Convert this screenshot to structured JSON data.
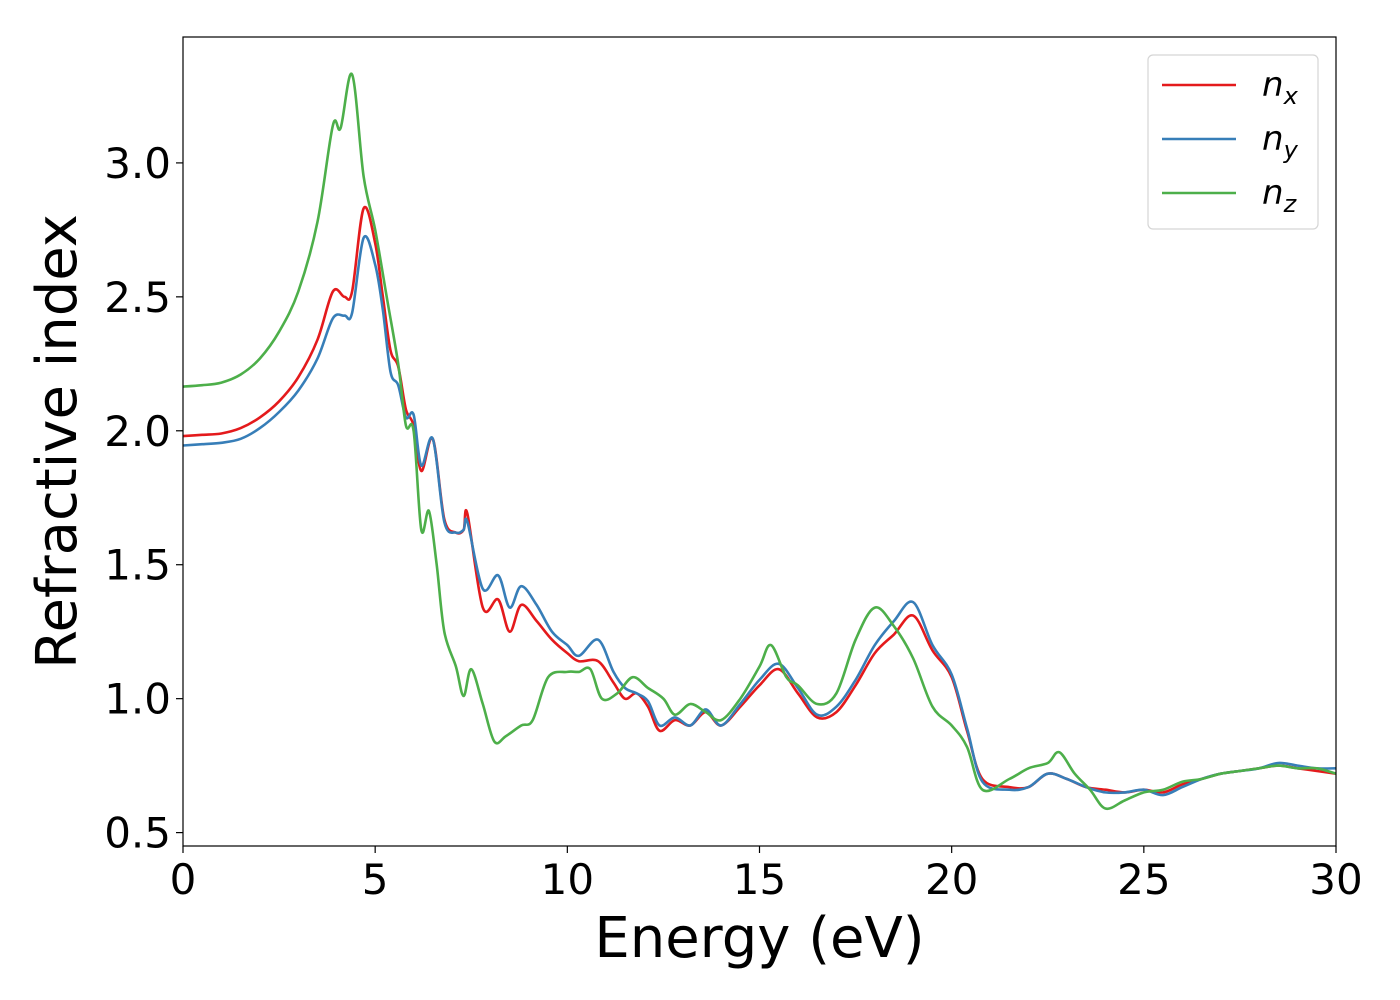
{
  "chart_data": {
    "type": "line",
    "xlabel": "Energy (eV)",
    "ylabel": "Refractive index",
    "xlim": [
      0,
      30
    ],
    "ylim": [
      0.45,
      3.47
    ],
    "xticks": [
      "0",
      "5",
      "10",
      "15",
      "20",
      "25",
      "30"
    ],
    "yticks": [
      "0.5",
      "1.0",
      "1.5",
      "2.0",
      "2.5",
      "3.0"
    ],
    "grid": false,
    "legend_position": "top-right",
    "series": [
      {
        "name": "n",
        "subscript": "x",
        "color": "#e41a1c",
        "points": [
          [
            0,
            1.98
          ],
          [
            0.5,
            1.985
          ],
          [
            1,
            1.99
          ],
          [
            1.5,
            2.01
          ],
          [
            2,
            2.05
          ],
          [
            2.5,
            2.11
          ],
          [
            3,
            2.2
          ],
          [
            3.5,
            2.34
          ],
          [
            3.9,
            2.52
          ],
          [
            4.2,
            2.5
          ],
          [
            4.4,
            2.52
          ],
          [
            4.7,
            2.83
          ],
          [
            5,
            2.7
          ],
          [
            5.2,
            2.5
          ],
          [
            5.4,
            2.3
          ],
          [
            5.6,
            2.24
          ],
          [
            5.8,
            2.08
          ],
          [
            6,
            2.02
          ],
          [
            6.2,
            1.85
          ],
          [
            6.5,
            1.97
          ],
          [
            6.8,
            1.67
          ],
          [
            7.1,
            1.62
          ],
          [
            7.3,
            1.63
          ],
          [
            7.4,
            1.69
          ],
          [
            7.8,
            1.34
          ],
          [
            8.2,
            1.37
          ],
          [
            8.5,
            1.25
          ],
          [
            8.8,
            1.35
          ],
          [
            9.2,
            1.29
          ],
          [
            9.6,
            1.22
          ],
          [
            10,
            1.17
          ],
          [
            10.3,
            1.14
          ],
          [
            10.8,
            1.14
          ],
          [
            11.2,
            1.06
          ],
          [
            11.5,
            1.0
          ],
          [
            11.8,
            1.02
          ],
          [
            12.1,
            0.97
          ],
          [
            12.4,
            0.88
          ],
          [
            12.8,
            0.92
          ],
          [
            13.2,
            0.9
          ],
          [
            13.6,
            0.95
          ],
          [
            14,
            0.9
          ],
          [
            14.5,
            0.97
          ],
          [
            15,
            1.05
          ],
          [
            15.5,
            1.11
          ],
          [
            16,
            1.02
          ],
          [
            16.5,
            0.93
          ],
          [
            17,
            0.95
          ],
          [
            17.5,
            1.05
          ],
          [
            18,
            1.17
          ],
          [
            18.5,
            1.24
          ],
          [
            19,
            1.31
          ],
          [
            19.5,
            1.18
          ],
          [
            20,
            1.08
          ],
          [
            20.4,
            0.88
          ],
          [
            20.8,
            0.7
          ],
          [
            21.5,
            0.67
          ],
          [
            22,
            0.67
          ],
          [
            22.5,
            0.72
          ],
          [
            23,
            0.7
          ],
          [
            23.5,
            0.67
          ],
          [
            24,
            0.66
          ],
          [
            24.5,
            0.65
          ],
          [
            25,
            0.66
          ],
          [
            25.5,
            0.65
          ],
          [
            26,
            0.68
          ],
          [
            26.5,
            0.7
          ],
          [
            27,
            0.72
          ],
          [
            27.5,
            0.73
          ],
          [
            28,
            0.74
          ],
          [
            28.5,
            0.75
          ],
          [
            29,
            0.74
          ],
          [
            29.5,
            0.73
          ],
          [
            30,
            0.72
          ]
        ]
      },
      {
        "name": "n",
        "subscript": "y",
        "color": "#377eb8",
        "points": [
          [
            0,
            1.945
          ],
          [
            0.5,
            1.95
          ],
          [
            1,
            1.955
          ],
          [
            1.5,
            1.97
          ],
          [
            2,
            2.01
          ],
          [
            2.5,
            2.07
          ],
          [
            3,
            2.15
          ],
          [
            3.5,
            2.27
          ],
          [
            3.9,
            2.42
          ],
          [
            4.2,
            2.43
          ],
          [
            4.4,
            2.44
          ],
          [
            4.7,
            2.72
          ],
          [
            5,
            2.62
          ],
          [
            5.2,
            2.45
          ],
          [
            5.4,
            2.22
          ],
          [
            5.6,
            2.17
          ],
          [
            5.8,
            2.05
          ],
          [
            6,
            2.06
          ],
          [
            6.2,
            1.87
          ],
          [
            6.5,
            1.97
          ],
          [
            6.8,
            1.66
          ],
          [
            7.1,
            1.62
          ],
          [
            7.3,
            1.63
          ],
          [
            7.4,
            1.66
          ],
          [
            7.8,
            1.41
          ],
          [
            8.2,
            1.46
          ],
          [
            8.5,
            1.34
          ],
          [
            8.8,
            1.42
          ],
          [
            9.2,
            1.35
          ],
          [
            9.6,
            1.25
          ],
          [
            10,
            1.2
          ],
          [
            10.3,
            1.16
          ],
          [
            10.8,
            1.22
          ],
          [
            11.2,
            1.1
          ],
          [
            11.5,
            1.04
          ],
          [
            11.8,
            1.02
          ],
          [
            12.1,
            0.99
          ],
          [
            12.4,
            0.9
          ],
          [
            12.8,
            0.93
          ],
          [
            13.2,
            0.9
          ],
          [
            13.6,
            0.96
          ],
          [
            14,
            0.9
          ],
          [
            14.5,
            0.98
          ],
          [
            15,
            1.07
          ],
          [
            15.5,
            1.13
          ],
          [
            16,
            1.04
          ],
          [
            16.5,
            0.94
          ],
          [
            17,
            0.97
          ],
          [
            17.5,
            1.07
          ],
          [
            18,
            1.2
          ],
          [
            18.5,
            1.29
          ],
          [
            19,
            1.36
          ],
          [
            19.5,
            1.2
          ],
          [
            20,
            1.09
          ],
          [
            20.4,
            0.89
          ],
          [
            20.8,
            0.69
          ],
          [
            21.5,
            0.66
          ],
          [
            22,
            0.67
          ],
          [
            22.5,
            0.72
          ],
          [
            23,
            0.7
          ],
          [
            23.5,
            0.67
          ],
          [
            24,
            0.65
          ],
          [
            24.5,
            0.65
          ],
          [
            25,
            0.66
          ],
          [
            25.5,
            0.64
          ],
          [
            26,
            0.67
          ],
          [
            26.5,
            0.7
          ],
          [
            27,
            0.72
          ],
          [
            27.5,
            0.73
          ],
          [
            28,
            0.74
          ],
          [
            28.5,
            0.76
          ],
          [
            29,
            0.75
          ],
          [
            29.5,
            0.74
          ],
          [
            30,
            0.74
          ]
        ]
      },
      {
        "name": "n",
        "subscript": "z",
        "color": "#4daf4a",
        "points": [
          [
            0,
            2.165
          ],
          [
            0.5,
            2.17
          ],
          [
            1,
            2.18
          ],
          [
            1.5,
            2.21
          ],
          [
            2,
            2.27
          ],
          [
            2.5,
            2.37
          ],
          [
            3,
            2.52
          ],
          [
            3.5,
            2.78
          ],
          [
            3.9,
            3.14
          ],
          [
            4.1,
            3.13
          ],
          [
            4.4,
            3.33
          ],
          [
            4.7,
            2.95
          ],
          [
            5,
            2.75
          ],
          [
            5.3,
            2.5
          ],
          [
            5.6,
            2.25
          ],
          [
            5.8,
            2.02
          ],
          [
            6,
            2.0
          ],
          [
            6.2,
            1.63
          ],
          [
            6.4,
            1.7
          ],
          [
            6.6,
            1.5
          ],
          [
            6.8,
            1.25
          ],
          [
            7.1,
            1.12
          ],
          [
            7.3,
            1.01
          ],
          [
            7.5,
            1.11
          ],
          [
            7.8,
            0.98
          ],
          [
            8.1,
            0.84
          ],
          [
            8.4,
            0.86
          ],
          [
            8.8,
            0.9
          ],
          [
            9.1,
            0.92
          ],
          [
            9.5,
            1.08
          ],
          [
            10,
            1.1
          ],
          [
            10.3,
            1.1
          ],
          [
            10.6,
            1.11
          ],
          [
            10.9,
            1.0
          ],
          [
            11.3,
            1.02
          ],
          [
            11.7,
            1.08
          ],
          [
            12.1,
            1.04
          ],
          [
            12.5,
            1.0
          ],
          [
            12.8,
            0.94
          ],
          [
            13.2,
            0.98
          ],
          [
            13.6,
            0.95
          ],
          [
            14,
            0.92
          ],
          [
            14.5,
            1.0
          ],
          [
            15,
            1.12
          ],
          [
            15.3,
            1.2
          ],
          [
            15.7,
            1.08
          ],
          [
            16,
            1.05
          ],
          [
            16.5,
            0.98
          ],
          [
            17,
            1.02
          ],
          [
            17.5,
            1.22
          ],
          [
            18,
            1.34
          ],
          [
            18.5,
            1.27
          ],
          [
            19,
            1.15
          ],
          [
            19.5,
            0.97
          ],
          [
            20,
            0.9
          ],
          [
            20.4,
            0.82
          ],
          [
            20.8,
            0.66
          ],
          [
            21.5,
            0.7
          ],
          [
            22,
            0.74
          ],
          [
            22.5,
            0.76
          ],
          [
            22.8,
            0.8
          ],
          [
            23.2,
            0.72
          ],
          [
            23.6,
            0.66
          ],
          [
            24,
            0.59
          ],
          [
            24.5,
            0.62
          ],
          [
            25,
            0.65
          ],
          [
            25.5,
            0.66
          ],
          [
            26,
            0.69
          ],
          [
            26.5,
            0.7
          ],
          [
            27,
            0.72
          ],
          [
            27.5,
            0.73
          ],
          [
            28,
            0.74
          ],
          [
            28.5,
            0.75
          ],
          [
            29,
            0.74
          ],
          [
            29.5,
            0.74
          ],
          [
            30,
            0.72
          ]
        ]
      }
    ]
  }
}
